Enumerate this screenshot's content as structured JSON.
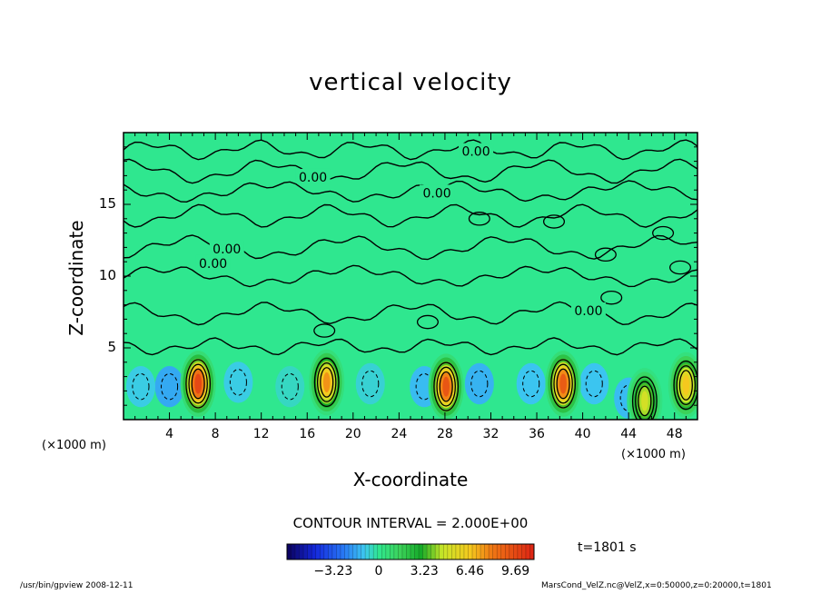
{
  "chart_data": {
    "type": "heatmap",
    "title": "vertical velocity",
    "xlabel": "X-coordinate",
    "ylabel": "Z-coordinate",
    "x_unit_label": "(×1000 m)",
    "xlim": [
      0,
      50
    ],
    "ylim": [
      0,
      20
    ],
    "xticks": [
      4,
      8,
      12,
      16,
      20,
      24,
      28,
      32,
      36,
      40,
      44,
      48
    ],
    "yticks": [
      5,
      10,
      15
    ],
    "contour_interval_text": "CONTOUR INTERVAL = 2.000E+00",
    "contour_labels": [
      {
        "text": "0.00",
        "x": 30.7,
        "z": 18.7
      },
      {
        "text": "0.00",
        "x": 16.5,
        "z": 16.9
      },
      {
        "text": "0.00",
        "x": 27.3,
        "z": 15.8
      },
      {
        "text": "0.00",
        "x": 9.0,
        "z": 11.9
      },
      {
        "text": "0.00",
        "x": 7.8,
        "z": 10.9
      },
      {
        "text": "0.00",
        "x": 40.5,
        "z": 7.6
      }
    ],
    "colorbar": {
      "ticks": [
        -3.23,
        0,
        3.23,
        6.46,
        9.69
      ],
      "tick_labels": [
        "−3.23",
        "0",
        "3.23",
        "6.46",
        "9.69"
      ],
      "range": [
        -6.5,
        11
      ]
    },
    "updrafts": [
      {
        "x": 6.5,
        "z": 2.5,
        "peak": 9.69
      },
      {
        "x": 17.7,
        "z": 2.6,
        "peak": 7.5
      },
      {
        "x": 28.1,
        "z": 2.3,
        "peak": 9.2
      },
      {
        "x": 38.3,
        "z": 2.5,
        "peak": 9.0
      },
      {
        "x": 45.4,
        "z": 1.3,
        "peak": 5.0
      },
      {
        "x": 49.0,
        "z": 2.4,
        "peak": 6.5
      }
    ],
    "downdrafts": [
      {
        "x": 4.0,
        "z": 2.3,
        "peak": -4.5
      },
      {
        "x": 1.5,
        "z": 2.3,
        "peak": -2.5
      },
      {
        "x": 10.0,
        "z": 2.6,
        "peak": -2.5
      },
      {
        "x": 14.5,
        "z": 2.3,
        "peak": -1.5
      },
      {
        "x": 21.5,
        "z": 2.5,
        "peak": -2.0
      },
      {
        "x": 26.2,
        "z": 2.3,
        "peak": -3.5
      },
      {
        "x": 31.0,
        "z": 2.5,
        "peak": -4.0
      },
      {
        "x": 35.5,
        "z": 2.5,
        "peak": -3.0
      },
      {
        "x": 41.0,
        "z": 2.5,
        "peak": -3.0
      },
      {
        "x": 44.0,
        "z": 1.5,
        "peak": -3.5
      }
    ]
  },
  "time_label": "t=1801 s",
  "footer_left": "/usr/bin/gpview   2008-12-11",
  "footer_right": "MarsCond_VelZ.nc@VelZ,x=0:50000,z=0:20000,t=1801",
  "colors": {
    "background_field": "#2fe78f",
    "negative": "#1f3fe8",
    "positive_peak": "#e8301a"
  }
}
